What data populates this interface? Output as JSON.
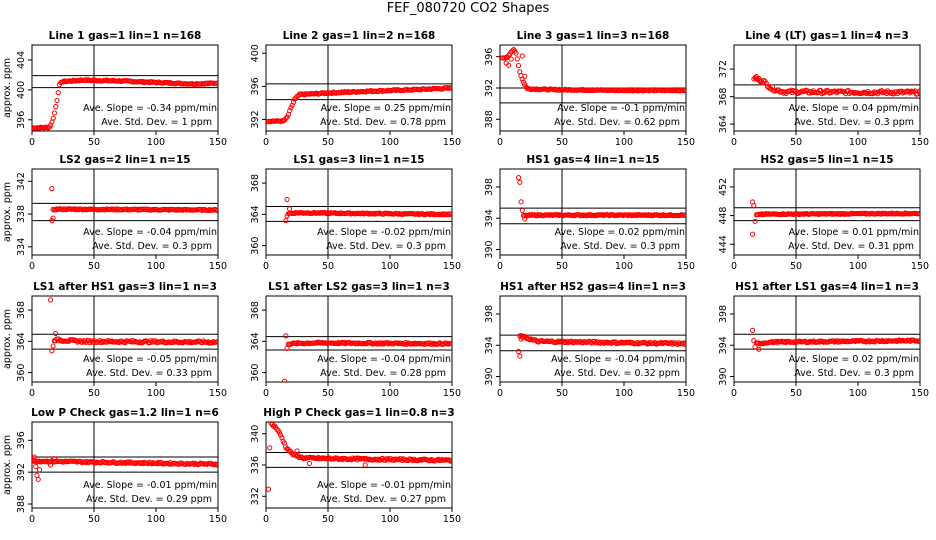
{
  "title": "FEF_080720  CO2 Shapes",
  "ylabel": "approx. ppm",
  "chart_data": [
    {
      "type": "scatter",
      "title": "Line 1 gas=1 lin=1 n=168",
      "xlim": [
        0,
        150
      ],
      "xticks": [
        0,
        50,
        100,
        150
      ],
      "ylim": [
        394.5,
        406
      ],
      "yticks": [
        396,
        400,
        404
      ],
      "hlines": [
        400.3,
        401.9
      ],
      "vline": 50,
      "slope_text": "Ave. Slope = -0.34 ppm/min",
      "sd_text": "Ave. Std. Dev. =  1  ppm",
      "curve": [
        [
          0,
          394.9
        ],
        [
          14,
          395
        ],
        [
          16,
          395.6
        ],
        [
          18,
          396.8
        ],
        [
          20,
          398.5
        ],
        [
          22,
          400.6
        ],
        [
          24,
          401.1
        ],
        [
          40,
          401.3
        ],
        [
          70,
          401.2
        ],
        [
          100,
          401
        ],
        [
          130,
          400.8
        ],
        [
          150,
          400.9
        ]
      ],
      "n": 150,
      "noise": 0.08,
      "outliers": []
    },
    {
      "type": "scatter",
      "title": "Line 2 gas=1 lin=2 n=168",
      "xlim": [
        0,
        150
      ],
      "xticks": [
        0,
        50,
        100,
        150
      ],
      "ylim": [
        390.6,
        401
      ],
      "yticks": [
        392,
        396,
        400
      ],
      "hlines": [
        394.4,
        396.3
      ],
      "vline": 50,
      "slope_text": "Ave. Slope = 0.25 ppm/min",
      "sd_text": "Ave. Std. Dev. = 0.78 ppm",
      "curve": [
        [
          0,
          391.8
        ],
        [
          14,
          391.8
        ],
        [
          17,
          392.2
        ],
        [
          20,
          393.3
        ],
        [
          23,
          394.4
        ],
        [
          27,
          395
        ],
        [
          50,
          395.2
        ],
        [
          80,
          395.4
        ],
        [
          120,
          395.6
        ],
        [
          150,
          395.8
        ]
      ],
      "n": 150,
      "noise": 0.08,
      "outliers": []
    },
    {
      "type": "scatter",
      "title": "Line 3 gas=1 lin=3 n=168",
      "xlim": [
        0,
        150
      ],
      "xticks": [
        0,
        50,
        100,
        150
      ],
      "ylim": [
        386.5,
        397.5
      ],
      "yticks": [
        388,
        392,
        396
      ],
      "hlines": [
        392,
        390.1
      ],
      "vline": 50,
      "slope_text": "Ave. Slope = -0.1 ppm/min",
      "sd_text": "Ave. Std. Dev. = 0.62 ppm",
      "curve": [
        [
          2,
          395.8
        ],
        [
          6,
          396
        ],
        [
          11,
          396.9
        ],
        [
          13,
          396.5
        ],
        [
          16,
          394
        ],
        [
          19,
          392.7
        ],
        [
          22,
          391.9
        ],
        [
          40,
          391.8
        ],
        [
          100,
          391.7
        ],
        [
          150,
          391.7
        ]
      ],
      "n": 150,
      "noise": 0.07,
      "outliers": [
        [
          5,
          395.2
        ],
        [
          7,
          394.9
        ],
        [
          9,
          395.7
        ],
        [
          18,
          396.1
        ],
        [
          20,
          393.5
        ]
      ]
    },
    {
      "type": "scatter",
      "title": "Line 4 (LT) gas=1 lin=4 n=3",
      "xlim": [
        0,
        150
      ],
      "xticks": [
        0,
        50,
        100,
        150
      ],
      "ylim": [
        363,
        375.5
      ],
      "yticks": [
        364,
        368,
        372
      ],
      "hlines": [
        369.7,
        367.8
      ],
      "vline": 50,
      "slope_text": "Ave. Slope = 0.04 ppm/min",
      "sd_text": "Ave. Std. Dev. = 0.3 ppm",
      "curve": [
        [
          16,
          370.7
        ],
        [
          24,
          370.2
        ],
        [
          30,
          369.2
        ],
        [
          40,
          368.7
        ],
        [
          150,
          368.6
        ]
      ],
      "n": 135,
      "noise": 0.25,
      "outliers": [
        [
          18,
          370.9
        ],
        [
          21,
          370.4
        ]
      ]
    },
    {
      "type": "scatter",
      "title": "LS2 gas=2 lin=1 n=15",
      "xlim": [
        0,
        150
      ],
      "xticks": [
        0,
        50,
        100,
        150
      ],
      "ylim": [
        333,
        343.5
      ],
      "yticks": [
        334,
        338,
        342
      ],
      "hlines": [
        339.3,
        337.2
      ],
      "vline": 50,
      "slope_text": "Ave. Slope = -0.04 ppm/min",
      "sd_text": "Ave. Std. Dev. = 0.3 ppm",
      "curve": [
        [
          17,
          338.5
        ],
        [
          20,
          338.6
        ],
        [
          150,
          338.5
        ]
      ],
      "n": 135,
      "noise": 0.07,
      "outliers": [
        [
          16,
          341.1
        ],
        [
          16,
          337.2
        ],
        [
          17,
          337.5
        ]
      ]
    },
    {
      "type": "scatter",
      "title": "LS1 gas=3 lin=1 n=15",
      "xlim": [
        0,
        150
      ],
      "xticks": [
        0,
        50,
        100,
        150
      ],
      "ylim": [
        358.8,
        369.8
      ],
      "yticks": [
        360,
        364,
        368
      ],
      "hlines": [
        365,
        363.1
      ],
      "vline": 50,
      "slope_text": "Ave. Slope = -0.02 ppm/min",
      "sd_text": "Ave. Std. Dev. = 0.3 ppm",
      "curve": [
        [
          18,
          364.1
        ],
        [
          25,
          364.2
        ],
        [
          150,
          364
        ]
      ],
      "n": 135,
      "noise": 0.07,
      "outliers": [
        [
          17,
          365.9
        ],
        [
          16,
          363.2
        ],
        [
          17,
          363.8
        ],
        [
          19,
          364.7
        ]
      ]
    },
    {
      "type": "scatter",
      "title": "HS1 gas=4 lin=1 n=15",
      "xlim": [
        0,
        150
      ],
      "xticks": [
        0,
        50,
        100,
        150
      ],
      "ylim": [
        389.3,
        400.3
      ],
      "yticks": [
        390,
        394,
        398
      ],
      "hlines": [
        395.3,
        393.3
      ],
      "vline": 50,
      "slope_text": "Ave. Slope = 0.02 ppm/min",
      "sd_text": "Ave. Std. Dev. = 0.3 ppm",
      "curve": [
        [
          19,
          394.3
        ],
        [
          25,
          394.4
        ],
        [
          150,
          394.4
        ]
      ],
      "n": 135,
      "noise": 0.07,
      "outliers": [
        [
          15,
          399.2
        ],
        [
          16,
          398.6
        ],
        [
          17,
          396.1
        ],
        [
          18,
          395
        ],
        [
          20,
          393.9
        ]
      ]
    },
    {
      "type": "scatter",
      "title": "HS2 gas=5 lin=1 n=15",
      "xlim": [
        0,
        150
      ],
      "xticks": [
        0,
        50,
        100,
        150
      ],
      "ylim": [
        442.5,
        454.5
      ],
      "yticks": [
        444,
        448,
        452
      ],
      "hlines": [
        449.1,
        447.3
      ],
      "vline": 50,
      "slope_text": "Ave. Slope = 0.01 ppm/min",
      "sd_text": "Ave. Std. Dev. = 0.31 ppm",
      "curve": [
        [
          18,
          448.1
        ],
        [
          25,
          448.2
        ],
        [
          150,
          448.3
        ]
      ],
      "n": 135,
      "noise": 0.07,
      "outliers": [
        [
          15,
          449.9
        ],
        [
          16,
          449.4
        ],
        [
          15,
          445.4
        ],
        [
          17,
          447.2
        ]
      ]
    },
    {
      "type": "scatter",
      "title": "LS1 after HS1 gas=3 lin=1 n=3",
      "xlim": [
        0,
        150
      ],
      "xticks": [
        0,
        50,
        100,
        150
      ],
      "ylim": [
        358.8,
        369.8
      ],
      "yticks": [
        360,
        364,
        368
      ],
      "hlines": [
        364.9,
        363
      ],
      "vline": 50,
      "slope_text": "Ave. Slope = -0.05 ppm/min",
      "sd_text": "Ave. Std. Dev. = 0.33 ppm",
      "curve": [
        [
          18,
          364.2
        ],
        [
          40,
          364
        ],
        [
          150,
          363.9
        ]
      ],
      "n": 135,
      "noise": 0.14,
      "outliers": [
        [
          15,
          369.3
        ],
        [
          16,
          362.8
        ],
        [
          17,
          363.4
        ],
        [
          19,
          365
        ]
      ]
    },
    {
      "type": "scatter",
      "title": "LS1 after LS2 gas=3 lin=1 n=3",
      "xlim": [
        0,
        150
      ],
      "xticks": [
        0,
        50,
        100,
        150
      ],
      "ylim": [
        358.8,
        369.8
      ],
      "yticks": [
        360,
        364,
        368
      ],
      "hlines": [
        364.6,
        362.9
      ],
      "vline": 50,
      "slope_text": "Ave. Slope = -0.04 ppm/min",
      "sd_text": "Ave. Std. Dev. = 0.28 ppm",
      "curve": [
        [
          18,
          363.7
        ],
        [
          40,
          363.8
        ],
        [
          150,
          363.7
        ]
      ],
      "n": 135,
      "noise": 0.1,
      "outliers": [
        [
          15,
          358.9
        ],
        [
          16,
          364.7
        ],
        [
          17,
          363.1
        ]
      ]
    },
    {
      "type": "scatter",
      "title": "HS1 after HS2 gas=4 lin=1 n=3",
      "xlim": [
        0,
        150
      ],
      "xticks": [
        0,
        50,
        100,
        150
      ],
      "ylim": [
        389.3,
        400.3
      ],
      "yticks": [
        390,
        394,
        398
      ],
      "hlines": [
        395.3,
        393.3
      ],
      "vline": 50,
      "slope_text": "Ave. Slope = -0.04 ppm/min",
      "sd_text": "Ave. Std. Dev. = 0.32 ppm",
      "curve": [
        [
          16,
          395.2
        ],
        [
          30,
          394.5
        ],
        [
          150,
          394.2
        ]
      ],
      "n": 135,
      "noise": 0.12,
      "outliers": [
        [
          15,
          393.2
        ],
        [
          16,
          392.6
        ],
        [
          17,
          394.8
        ]
      ]
    },
    {
      "type": "scatter",
      "title": "HS1 after LS1 gas=4 lin=1 n=3",
      "xlim": [
        0,
        150
      ],
      "xticks": [
        0,
        50,
        100,
        150
      ],
      "ylim": [
        389.3,
        400.3
      ],
      "yticks": [
        390,
        394,
        398
      ],
      "hlines": [
        395.4,
        393.5
      ],
      "vline": 50,
      "slope_text": "Ave. Slope = 0.02 ppm/min",
      "sd_text": "Ave. Std. Dev. = 0.3 ppm",
      "curve": [
        [
          18,
          394.2
        ],
        [
          30,
          394.4
        ],
        [
          150,
          394.6
        ]
      ],
      "n": 135,
      "noise": 0.1,
      "outliers": [
        [
          15,
          395.9
        ],
        [
          16,
          394.6
        ],
        [
          17,
          393.8
        ],
        [
          20,
          393.5
        ]
      ]
    },
    {
      "type": "scatter",
      "title": "Low P Check gas=1.2 lin=1 n=6",
      "xlim": [
        0,
        150
      ],
      "xticks": [
        0,
        50,
        100,
        150
      ],
      "ylim": [
        387.5,
        398.3
      ],
      "yticks": [
        388,
        392,
        396
      ],
      "hlines": [
        393.9,
        392
      ],
      "vline": 50,
      "slope_text": "Ave. Slope = -0.01 ppm/min",
      "sd_text": "Ave. Std. Dev. = 0.29 ppm",
      "curve": [
        [
          0,
          393.4
        ],
        [
          150,
          393
        ]
      ],
      "n": 150,
      "noise": 0.1,
      "outliers": [
        [
          2,
          393.9
        ],
        [
          3,
          392.7
        ],
        [
          4,
          391.6
        ],
        [
          5,
          391.1
        ],
        [
          6,
          392.3
        ],
        [
          18,
          393.7
        ],
        [
          15,
          392.9
        ]
      ]
    },
    {
      "type": "scatter",
      "title": "High P Check gas=1 lin=0.8 n=3",
      "xlim": [
        0,
        150
      ],
      "xticks": [
        0,
        50,
        100,
        150
      ],
      "ylim": [
        330.5,
        341.5
      ],
      "yticks": [
        332,
        336,
        340
      ],
      "hlines": [
        337.6,
        335.7
      ],
      "vline": 50,
      "slope_text": "Ave. Slope = -0.01 ppm/min",
      "sd_text": "Ave. Std. Dev. = 0.27 ppm",
      "curve": [
        [
          4,
          341.3
        ],
        [
          8,
          340.8
        ],
        [
          12,
          339.8
        ],
        [
          16,
          338.3
        ],
        [
          22,
          337.3
        ],
        [
          30,
          336.9
        ],
        [
          60,
          336.8
        ],
        [
          150,
          336.6
        ]
      ],
      "n": 150,
      "noise": 0.12,
      "outliers": [
        [
          2,
          332.9
        ],
        [
          3,
          338.2
        ],
        [
          25,
          337.8
        ],
        [
          35,
          336.2
        ],
        [
          80,
          336
        ]
      ]
    }
  ]
}
